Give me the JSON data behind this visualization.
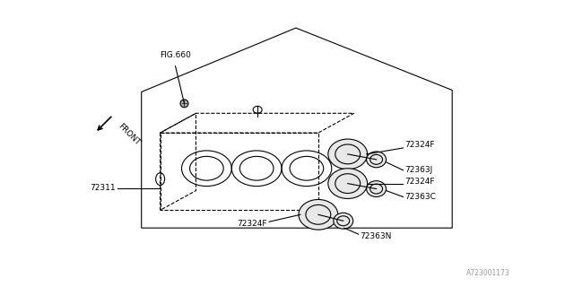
{
  "bg_color": "#ffffff",
  "line_color": "#000000",
  "dash_color": "#000000",
  "line_width": 0.8,
  "watermark": "A723001173",
  "fig660_label": "FIG.660",
  "front_label": "FRONT",
  "part_72311": "72311",
  "part_72324F": "72324F",
  "part_72363J": "72363J",
  "part_72363C": "72363C",
  "part_72363N": "72363N",
  "font_size": 6.5
}
